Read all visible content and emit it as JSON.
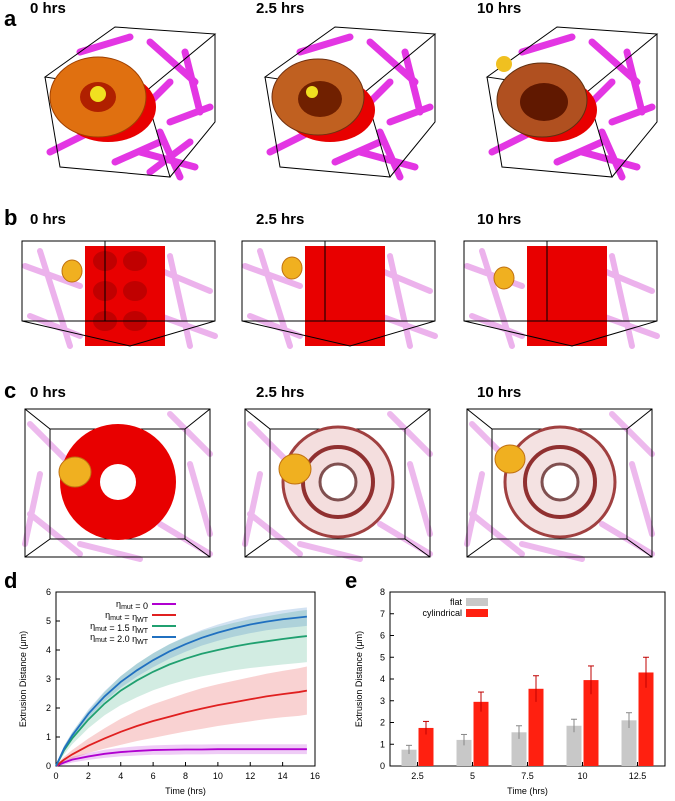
{
  "panels": {
    "a": {
      "letter": "a",
      "times": [
        "0 hrs",
        "2.5 hrs",
        "10 hrs"
      ]
    },
    "b": {
      "letter": "b",
      "times": [
        "0 hrs",
        "2.5 hrs",
        "10 hrs"
      ]
    },
    "c": {
      "letter": "c",
      "times": [
        "0 hrs",
        "2.5 hrs",
        "10 hrs"
      ]
    },
    "d": {
      "letter": "d"
    },
    "e": {
      "letter": "e"
    }
  },
  "colors": {
    "network": "#e020e0",
    "tissue_red": "#e80000",
    "tissue_orange": "#e07010",
    "cell_yellow": "#f0c020"
  },
  "chart_data": [
    {
      "type": "line",
      "xlabel": "Time (hrs)",
      "ylabel": "Extrusion Distance (μm)",
      "xlim": [
        0,
        16
      ],
      "ylim": [
        0,
        6
      ],
      "xticks": [
        "0",
        "2",
        "4",
        "6",
        "8",
        "10",
        "12",
        "14",
        "16"
      ],
      "yticks": [
        "0",
        "1",
        "2",
        "3",
        "4",
        "5",
        "6"
      ],
      "legend_position": "top-left",
      "x": [
        0,
        0.5,
        1,
        2,
        3,
        4,
        5,
        6,
        7,
        8,
        9,
        10,
        11,
        12,
        13,
        14,
        15,
        15.5
      ],
      "series": [
        {
          "legend_main": "η",
          "legend_sub": "mut",
          "legend_rest": " = 0",
          "legend_sub2": "",
          "color": "#b000d0",
          "values": [
            0,
            0.12,
            0.22,
            0.33,
            0.42,
            0.48,
            0.52,
            0.55,
            0.56,
            0.57,
            0.57,
            0.58,
            0.58,
            0.58,
            0.58,
            0.58,
            0.58,
            0.58
          ],
          "band": [
            0.05,
            0.08,
            0.1,
            0.12,
            0.14,
            0.15,
            0.16,
            0.16,
            0.17,
            0.17,
            0.17,
            0.17,
            0.17,
            0.17,
            0.17,
            0.17,
            0.17,
            0.17
          ]
        },
        {
          "legend_main": "η",
          "legend_sub": "mut",
          "legend_rest": " = η",
          "legend_sub2": "WT",
          "color": "#e02020",
          "values": [
            0,
            0.22,
            0.4,
            0.7,
            0.95,
            1.18,
            1.38,
            1.55,
            1.7,
            1.85,
            1.98,
            2.1,
            2.2,
            2.3,
            2.4,
            2.48,
            2.55,
            2.6
          ],
          "band": [
            0.05,
            0.1,
            0.15,
            0.25,
            0.35,
            0.45,
            0.52,
            0.58,
            0.62,
            0.66,
            0.7,
            0.72,
            0.74,
            0.76,
            0.78,
            0.8,
            0.82,
            0.83
          ]
        },
        {
          "legend_main": "η",
          "legend_sub": "mut",
          "legend_rest": " = 1.5 η",
          "legend_sub2": "WT",
          "color": "#20a070",
          "values": [
            0,
            0.55,
            0.95,
            1.6,
            2.15,
            2.6,
            2.95,
            3.25,
            3.5,
            3.7,
            3.87,
            4.0,
            4.12,
            4.22,
            4.3,
            4.38,
            4.45,
            4.48
          ],
          "band": [
            0.05,
            0.15,
            0.2,
            0.3,
            0.4,
            0.5,
            0.58,
            0.64,
            0.7,
            0.74,
            0.78,
            0.8,
            0.82,
            0.84,
            0.86,
            0.88,
            0.9,
            0.9
          ]
        },
        {
          "legend_main": "η",
          "legend_sub": "mut",
          "legend_rest": " = 2.0 η",
          "legend_sub2": "WT",
          "color": "#2070c0",
          "values": [
            0,
            0.6,
            1.05,
            1.8,
            2.4,
            2.9,
            3.3,
            3.65,
            3.95,
            4.2,
            4.42,
            4.6,
            4.75,
            4.88,
            4.98,
            5.06,
            5.12,
            5.15
          ],
          "band": [
            0.05,
            0.1,
            0.12,
            0.15,
            0.18,
            0.2,
            0.22,
            0.24,
            0.25,
            0.26,
            0.27,
            0.28,
            0.29,
            0.3,
            0.3,
            0.31,
            0.32,
            0.32
          ]
        }
      ]
    },
    {
      "type": "bar",
      "xlabel": "Time (hrs)",
      "ylabel": "Extrusion Distance (μm)",
      "ylim": [
        0,
        8
      ],
      "yticks": [
        "0",
        "1",
        "2",
        "3",
        "4",
        "5",
        "6",
        "7",
        "8"
      ],
      "categories": [
        "2.5",
        "5",
        "7.5",
        "10",
        "12.5"
      ],
      "legend_position": "top-left",
      "series": [
        {
          "name": "flat",
          "color": "#c8c8c8",
          "values": [
            0.75,
            1.2,
            1.55,
            1.85,
            2.1
          ],
          "err": [
            0.2,
            0.25,
            0.3,
            0.3,
            0.35
          ]
        },
        {
          "name": "cylindrical",
          "color": "#ff2010",
          "values": [
            1.75,
            2.95,
            3.55,
            3.95,
            4.3
          ],
          "err": [
            0.3,
            0.45,
            0.6,
            0.65,
            0.7
          ]
        }
      ]
    }
  ]
}
